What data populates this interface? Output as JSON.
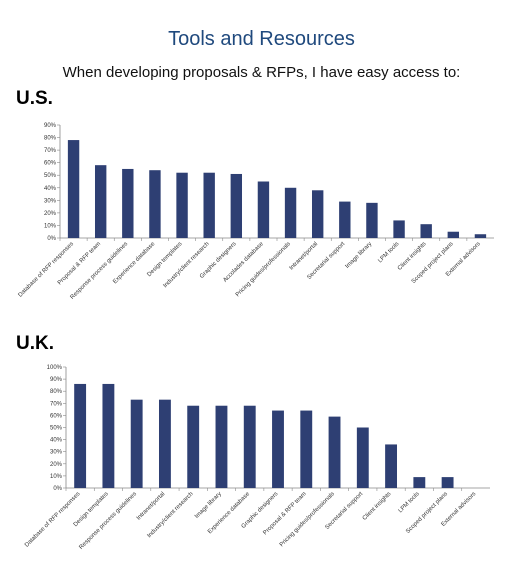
{
  "title": "Tools and Resources",
  "subtitle": "When developing proposals & RFPs, I have easy access to:",
  "bar_color": "#2e3f73",
  "chart_data": [
    {
      "type": "bar",
      "label": "U.S.",
      "ylim": [
        0,
        90
      ],
      "ytick_step": 10,
      "ytick_suffix": "%",
      "categories": [
        "Database of RFP responses",
        "Proposal & RFP team",
        "Response process guidelines",
        "Experience database",
        "Design templates",
        "Industry/client research",
        "Graphic designers",
        "Accolades database",
        "Pricing guides/professionals",
        "Intranet/portal",
        "Secretarial support",
        "Image library",
        "LPM tools",
        "Client insights",
        "Scoped project plans",
        "External advisors"
      ],
      "values": [
        78,
        58,
        55,
        54,
        52,
        52,
        51,
        45,
        40,
        38,
        29,
        28,
        14,
        11,
        5,
        3
      ]
    },
    {
      "type": "bar",
      "label": "U.K.",
      "ylim": [
        0,
        100
      ],
      "ytick_step": 10,
      "ytick_suffix": "%",
      "categories": [
        "Database of RFP responses",
        "Design templates",
        "Response process guidelines",
        "Intranet/portal",
        "Industry/client research",
        "Image library",
        "Experience database",
        "Graphic designers",
        "Proposal & RFP team",
        "Pricing guides/professionals",
        "Secretarial support",
        "Client insights",
        "LPM tools",
        "Scoped project plans",
        "External advisors"
      ],
      "values": [
        86,
        86,
        73,
        73,
        68,
        68,
        68,
        64,
        64,
        59,
        50,
        36,
        9,
        9,
        0
      ]
    }
  ]
}
